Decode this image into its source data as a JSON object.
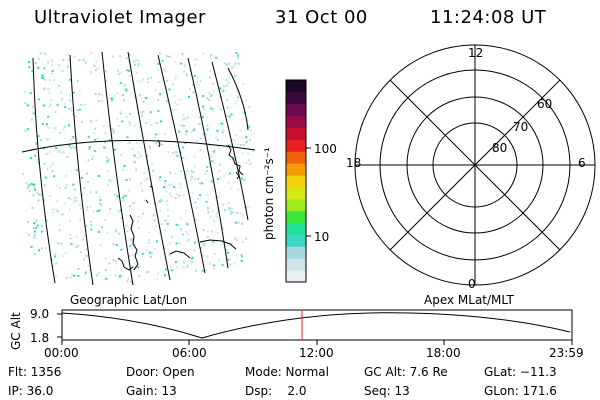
{
  "header": {
    "instrument": "Ultraviolet Imager",
    "date": "31 Oct 00",
    "time": "11:24:08 UT"
  },
  "image_panel": {
    "projection_label": "Geographic Lat/Lon"
  },
  "colorbar": {
    "unit_label": "photon cm⁻²s⁻¹",
    "ticks": [
      "100",
      "10"
    ],
    "colors": [
      "#e9f0f4",
      "#cde3ea",
      "#a8d8df",
      "#3fd6c8",
      "#22e09a",
      "#3fe63a",
      "#a0ea1a",
      "#d7e914",
      "#f2d20c",
      "#f59a08",
      "#f0620c",
      "#e5201d",
      "#c4102c",
      "#9a0a44",
      "#6b0a52",
      "#3a0a3f",
      "#1a0826"
    ]
  },
  "polar_plot": {
    "projection_label": "Apex MLat/MLT",
    "mlt_labels": {
      "top": "12",
      "left": "18",
      "right": "6",
      "bottom": "0"
    },
    "lat_labels": [
      "60",
      "70",
      "80"
    ]
  },
  "altitude_strip": {
    "axis_label": "GC Alt",
    "y_ticks": [
      "9.0",
      "1.8"
    ],
    "x_ticks": [
      "00:00",
      "06:00",
      "12:00",
      "18:00",
      "23:59"
    ],
    "current_time_marker_color": "#e02020"
  },
  "status": {
    "flt": "Flt: 1356",
    "ip": "IP: 36.0",
    "door": "Door: Open",
    "gain": "Gain: 13",
    "mode": "Mode: Normal",
    "dsp": "Dsp:    2.0",
    "gc_alt": "GC Alt: 7.6 Re",
    "seq": "Seq: 13",
    "glat": "GLat: −11.3",
    "glon": "GLon: 171.6"
  }
}
